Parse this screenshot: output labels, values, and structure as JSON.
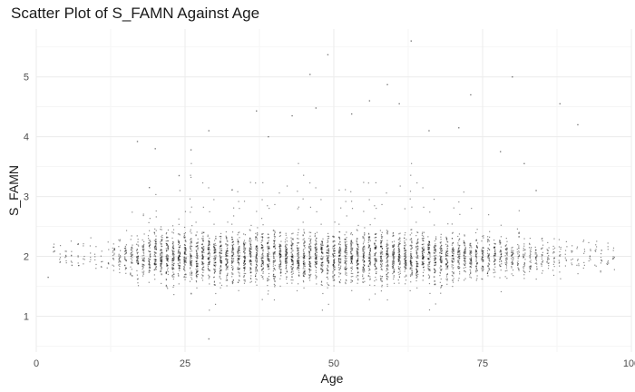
{
  "chart_data": {
    "type": "scatter",
    "title": "Scatter Plot of S_FAMN Against Age",
    "xlabel": "Age",
    "ylabel": "S_FAMN",
    "xlim": [
      0,
      100
    ],
    "ylim": [
      0.4,
      5.8
    ],
    "xticks": [
      0,
      25,
      50,
      75,
      100
    ],
    "yticks": [
      1,
      2,
      3,
      4,
      5
    ],
    "grid": true,
    "theme": "minimal",
    "point_color": "#000000",
    "outliers": [
      {
        "x": 2,
        "y": 1.65
      },
      {
        "x": 5,
        "y": 2.0
      },
      {
        "x": 6,
        "y": 1.85
      },
      {
        "x": 7,
        "y": 2.2
      },
      {
        "x": 29,
        "y": 0.62
      },
      {
        "x": 63,
        "y": 5.6
      },
      {
        "x": 49,
        "y": 5.37
      },
      {
        "x": 59,
        "y": 4.87
      },
      {
        "x": 46,
        "y": 5.04
      },
      {
        "x": 73,
        "y": 4.7
      },
      {
        "x": 71,
        "y": 4.15
      },
      {
        "x": 80,
        "y": 5.0
      },
      {
        "x": 91,
        "y": 4.2
      },
      {
        "x": 88,
        "y": 4.55
      },
      {
        "x": 37,
        "y": 4.43
      },
      {
        "x": 29,
        "y": 4.1
      },
      {
        "x": 26,
        "y": 3.78
      },
      {
        "x": 20,
        "y": 3.8
      },
      {
        "x": 17,
        "y": 3.92
      },
      {
        "x": 43,
        "y": 4.35
      },
      {
        "x": 47,
        "y": 4.48
      },
      {
        "x": 53,
        "y": 4.38
      },
      {
        "x": 56,
        "y": 4.6
      },
      {
        "x": 61,
        "y": 4.55
      },
      {
        "x": 66,
        "y": 4.1
      },
      {
        "x": 39,
        "y": 4.0
      },
      {
        "x": 24,
        "y": 3.35
      },
      {
        "x": 19,
        "y": 3.15
      },
      {
        "x": 84,
        "y": 3.1
      },
      {
        "x": 78,
        "y": 3.75
      },
      {
        "x": 82,
        "y": 3.55
      },
      {
        "x": 95,
        "y": 2.1
      }
    ]
  }
}
